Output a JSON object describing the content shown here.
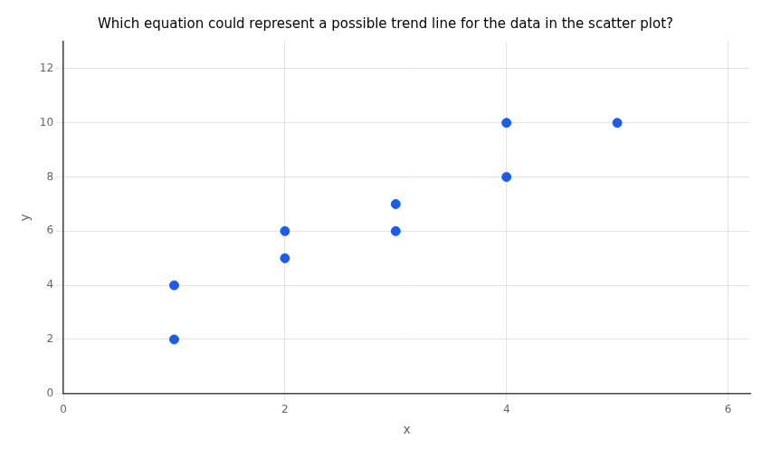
{
  "chart_data": {
    "type": "scatter",
    "title": "Which equation could represent a possible trend line for the data in the scatter plot?",
    "x": [
      1,
      1,
      2,
      2,
      3,
      3,
      4,
      4,
      5
    ],
    "values": [
      2,
      4,
      5,
      6,
      7,
      6,
      8,
      10,
      10
    ],
    "color": "#1a5de8",
    "xlabel": "x",
    "ylabel": "y",
    "xlim": [
      0,
      6.2
    ],
    "ylim": [
      0,
      13
    ],
    "xticks": [
      0,
      2,
      4,
      6
    ],
    "yticks": [
      0,
      2,
      4,
      6,
      8,
      10,
      12
    ],
    "grid": true
  }
}
